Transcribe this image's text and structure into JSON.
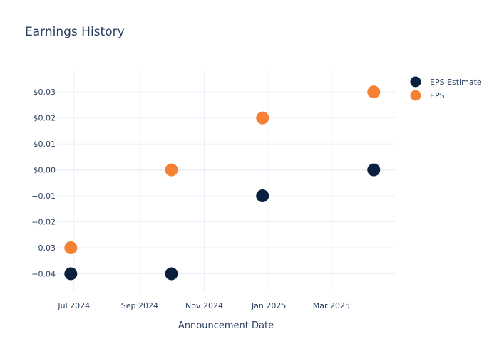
{
  "chart_data": {
    "type": "scatter",
    "title": "Earnings History",
    "xlabel": "Announcement Date",
    "ylabel": "",
    "x_ticks": [
      {
        "date": "2024-07-01",
        "label": "Jul 2024"
      },
      {
        "date": "2024-09-01",
        "label": "Sep 2024"
      },
      {
        "date": "2024-11-01",
        "label": "Nov 2024"
      },
      {
        "date": "2025-01-01",
        "label": "Jan 2025"
      },
      {
        "date": "2025-03-01",
        "label": "Mar 2025"
      }
    ],
    "y_ticks": [
      {
        "value": 0.03,
        "label": "$0.03"
      },
      {
        "value": 0.02,
        "label": "$0.02"
      },
      {
        "value": 0.01,
        "label": "$0.01"
      },
      {
        "value": 0.0,
        "label": "$0.00"
      },
      {
        "value": -0.01,
        "label": "−0.01"
      },
      {
        "value": -0.02,
        "label": "−0.02"
      },
      {
        "value": -0.03,
        "label": "−0.03"
      },
      {
        "value": -0.04,
        "label": "−0.04"
      }
    ],
    "ylim": [
      -0.047,
      0.038
    ],
    "xlim": [
      "2024-06-15",
      "2025-04-30"
    ],
    "grid": true,
    "legend_position": "top-right",
    "series": [
      {
        "name": "EPS Estimate",
        "color": "#0b1f3f",
        "points": [
          {
            "x": "2024-06-28",
            "y": -0.04
          },
          {
            "x": "2024-10-01",
            "y": -0.04
          },
          {
            "x": "2024-12-26",
            "y": -0.01
          },
          {
            "x": "2025-04-10",
            "y": 0.0
          }
        ]
      },
      {
        "name": "EPS",
        "color": "#f58134",
        "points": [
          {
            "x": "2024-06-28",
            "y": -0.03
          },
          {
            "x": "2024-10-01",
            "y": 0.0
          },
          {
            "x": "2024-12-26",
            "y": 0.02
          },
          {
            "x": "2025-04-10",
            "y": 0.03
          }
        ]
      }
    ]
  }
}
